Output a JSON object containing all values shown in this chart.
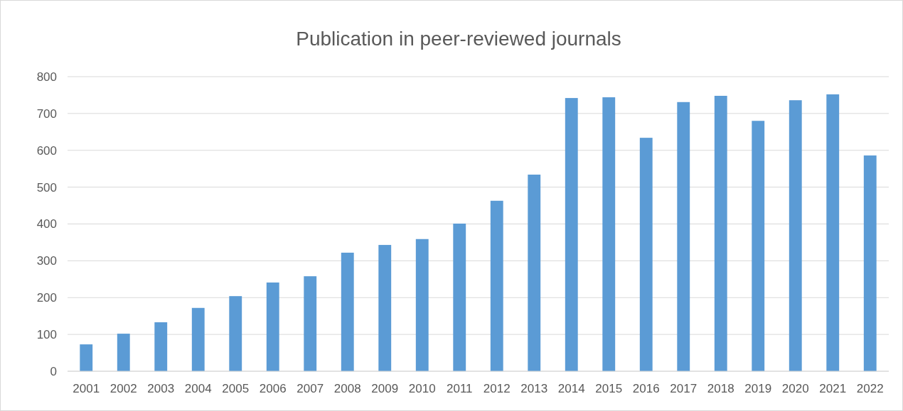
{
  "chart_data": {
    "type": "bar",
    "title": "Publication in peer-reviewed journals",
    "categories": [
      "2001",
      "2002",
      "2003",
      "2004",
      "2005",
      "2006",
      "2007",
      "2008",
      "2009",
      "2010",
      "2011",
      "2012",
      "2013",
      "2014",
      "2015",
      "2016",
      "2017",
      "2018",
      "2019",
      "2020",
      "2021",
      "2022"
    ],
    "values": [
      73,
      102,
      133,
      172,
      204,
      241,
      258,
      322,
      343,
      359,
      401,
      463,
      534,
      742,
      744,
      634,
      731,
      748,
      680,
      736,
      752,
      586
    ],
    "color": "#5b9bd5",
    "ylim": [
      0,
      800
    ],
    "yticks": [
      0,
      100,
      200,
      300,
      400,
      500,
      600,
      700,
      800
    ],
    "grid": "y"
  }
}
